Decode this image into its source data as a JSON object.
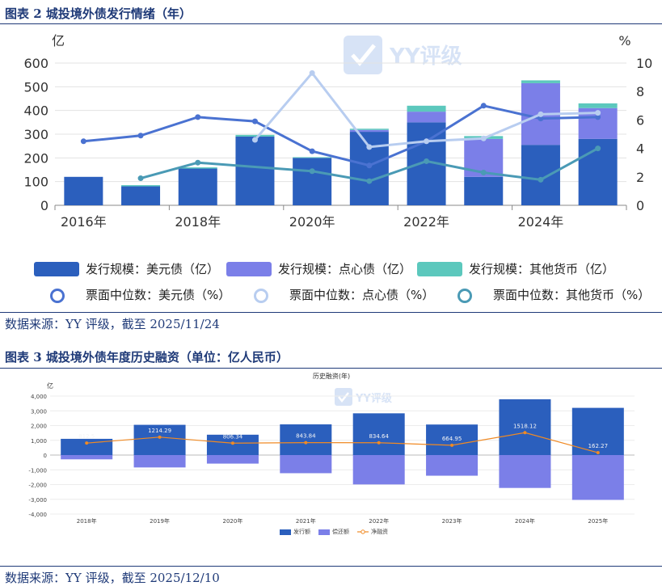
{
  "figure2": {
    "title": "图表 2 城投境外债发行情绪（年）",
    "source": "数据来源：YY 评级，截至 2025/11/24",
    "watermark": "YY评级",
    "chart_data": {
      "type": "bar",
      "stacked": true,
      "years": [
        2016,
        2017,
        2018,
        2019,
        2020,
        2021,
        2022,
        2023,
        2024,
        2025
      ],
      "x_tick_labels": [
        "2016年",
        "2018年",
        "2020年",
        "2022年",
        "2024年"
      ],
      "y_left_unit": "亿",
      "y_right_unit": "%",
      "y_left_ticks": [
        "0",
        "100",
        "200",
        "300",
        "400",
        "500",
        "600"
      ],
      "y_right_ticks": [
        "0",
        "2",
        "4",
        "6",
        "8",
        "10"
      ],
      "ylim_left": [
        0,
        600
      ],
      "ylim_right": [
        0,
        10
      ],
      "bar_series": [
        {
          "name": "发行规模：美元债（亿）",
          "color": "#2b5fbd",
          "values": [
            120,
            80,
            155,
            290,
            200,
            310,
            350,
            120,
            255,
            280
          ]
        },
        {
          "name": "发行规模：点心债（亿）",
          "color": "#7b7fe8",
          "values": [
            0,
            0,
            0,
            0,
            0,
            8,
            45,
            160,
            260,
            130
          ]
        },
        {
          "name": "发行规模：其他货币（亿）",
          "color": "#5cc8bd",
          "values": [
            0,
            5,
            5,
            7,
            3,
            5,
            25,
            12,
            12,
            20
          ]
        }
      ],
      "line_series": [
        {
          "name": "票面中位数：美元债（%）",
          "color": "#4a72d1",
          "values": [
            4.5,
            4.9,
            6.2,
            5.9,
            3.8,
            2.8,
            4.5,
            7.0,
            6.1,
            6.2
          ]
        },
        {
          "name": "票面中位数：点心债（%）",
          "color": "#b8cdf0",
          "values": [
            null,
            null,
            null,
            4.6,
            9.3,
            4.1,
            4.5,
            4.7,
            6.4,
            6.5
          ]
        },
        {
          "name": "票面中位数：其他货币（%）",
          "color": "#4a9ab5",
          "values": [
            null,
            1.9,
            3.0,
            null,
            2.4,
            1.7,
            3.1,
            2.3,
            1.8,
            4.0
          ]
        }
      ]
    }
  },
  "figure3": {
    "title": "图表 3 城投境外债年度历史融资（单位：亿人民币）",
    "source": "数据来源：YY 评级，截至 2025/12/10",
    "watermark": "YY评级",
    "chart_data": {
      "type": "bar",
      "title": "历史融资(年)",
      "y_unit": "亿",
      "categories": [
        "2018年",
        "2019年",
        "2020年",
        "2021年",
        "2022年",
        "2023年",
        "2024年",
        "2025年"
      ],
      "y_ticks": [
        "4,000",
        "3,000",
        "2,000",
        "1,000",
        "0",
        "-1,000",
        "-2,000",
        "-3,000",
        "-4,000"
      ],
      "ylim": [
        -4000,
        4000
      ],
      "series": [
        {
          "name": "发行额",
          "color": "#2b5fbd",
          "values": [
            1100,
            2050,
            1380,
            2080,
            2830,
            2070,
            3780,
            3200
          ]
        },
        {
          "name": "偿还额",
          "color": "#7b7fe8",
          "values": [
            -290,
            -840,
            -580,
            -1230,
            -1990,
            -1400,
            -2230,
            -3040
          ]
        },
        {
          "name": "净融资",
          "color": "#f08a24",
          "line": true,
          "values": [
            812.5,
            1214.29,
            806.34,
            843.84,
            834.64,
            664.95,
            1518.12,
            162.27
          ],
          "labels": [
            "812.5",
            "1214.29",
            "806.34",
            "843.84",
            "834.64",
            "664.95",
            "1518.12",
            "162.27"
          ]
        }
      ]
    }
  }
}
